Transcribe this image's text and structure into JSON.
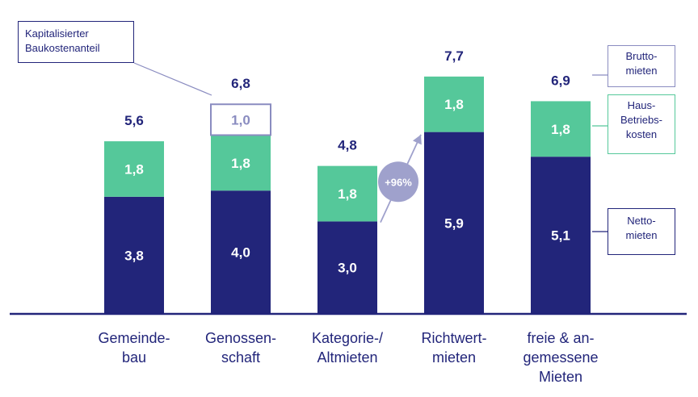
{
  "chart_data": {
    "type": "bar",
    "stacked": true,
    "categories": [
      [
        "Gemeinde-",
        "bau"
      ],
      [
        "Genossen-",
        "schaft"
      ],
      [
        "Kategorie-/",
        "Altmieten"
      ],
      [
        "Richtwert-",
        "mieten"
      ],
      [
        "freie & an-",
        "gemessene",
        "Mieten"
      ]
    ],
    "series": [
      {
        "key": "netto",
        "values": [
          3.8,
          4.0,
          3.0,
          5.9,
          5.1
        ],
        "labels": [
          "3,8",
          "4,0",
          "3,0",
          "5,9",
          "5,1"
        ],
        "color": "#22257a"
      },
      {
        "key": "betrieb",
        "values": [
          1.8,
          1.8,
          1.8,
          1.8,
          1.8
        ],
        "labels": [
          "1,8",
          "1,8",
          "1,8",
          "1,8",
          "1,8"
        ],
        "color": "#55c89a"
      },
      {
        "key": "bau",
        "values": [
          0,
          1.0,
          0,
          0,
          0
        ],
        "labels": [
          "",
          "1,0",
          "",
          "",
          ""
        ],
        "color": "#ffffff",
        "stroke": "#8a8cc0"
      }
    ],
    "totals": [
      "5,6",
      "6,8",
      "4,8",
      "7,7",
      "6,9"
    ],
    "ylim": [
      0,
      8
    ],
    "annotation": {
      "text": "+96%",
      "from_category": 2,
      "to_category": 3
    }
  },
  "legend": {
    "kapitalisiert": "Kapitalisierter\nBaukostenanteil",
    "brutto": "Brutto-\nmieten",
    "haus": "Haus-\nBetriebs-\nkosten",
    "netto": "Netto-\nmieten"
  },
  "colors": {
    "navy": "#22257a",
    "green": "#55c89a",
    "lavender": "#8a8cc0",
    "bubble": "#9fa1cc"
  }
}
